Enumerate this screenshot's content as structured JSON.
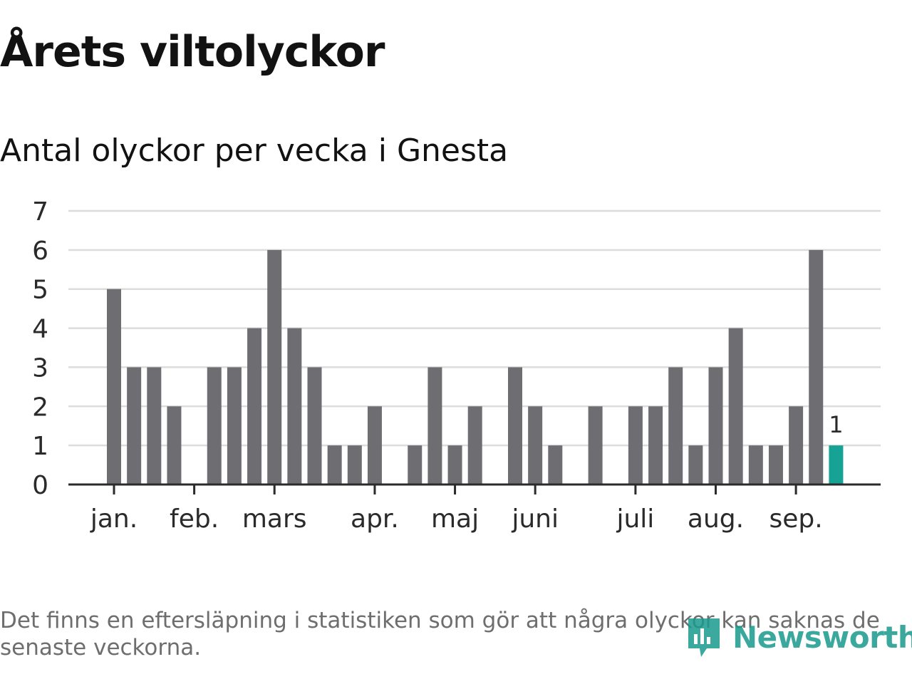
{
  "title": "Årets viltolyckor",
  "subtitle": "Antal olyckor per vecka i Gnesta",
  "footnote": "Det finns en eftersläpning i statistiken som gör att några olyckor kan saknas de senaste veckorna.",
  "brand": {
    "name": "Newsworthy",
    "icon": "newsworthy-logo-icon",
    "color": "#1a9a8e"
  },
  "chart_data": {
    "type": "bar",
    "title": "Antal olyckor per vecka i Gnesta",
    "xlabel": "",
    "ylabel": "",
    "ylim": [
      0,
      7
    ],
    "y_ticks": [
      0,
      1,
      2,
      3,
      4,
      5,
      6,
      7
    ],
    "grid": true,
    "month_labels": [
      "jan.",
      "feb.",
      "mars",
      "apr.",
      "maj",
      "juni",
      "juli",
      "aug.",
      "sep."
    ],
    "month_start_week": [
      1,
      5,
      9,
      14,
      18,
      22,
      27,
      31,
      35
    ],
    "weeks": [
      1,
      2,
      3,
      4,
      5,
      6,
      7,
      8,
      9,
      10,
      11,
      12,
      13,
      14,
      15,
      16,
      17,
      18,
      19,
      20,
      21,
      22,
      23,
      24,
      25,
      26,
      27,
      28,
      29,
      30,
      31,
      32,
      33,
      34,
      35,
      36,
      37
    ],
    "values": [
      5,
      3,
      3,
      2,
      0,
      3,
      3,
      4,
      6,
      4,
      3,
      1,
      1,
      2,
      0,
      1,
      3,
      1,
      2,
      0,
      3,
      2,
      1,
      0,
      2,
      0,
      2,
      2,
      3,
      1,
      3,
      4,
      1,
      1,
      2,
      6,
      1
    ],
    "highlight_index": 36,
    "highlight_label": "1",
    "colors": {
      "bar": "#6e6d72",
      "highlight": "#16a396",
      "grid": "#dcdcdc",
      "axis": "#2b2b2b"
    }
  }
}
